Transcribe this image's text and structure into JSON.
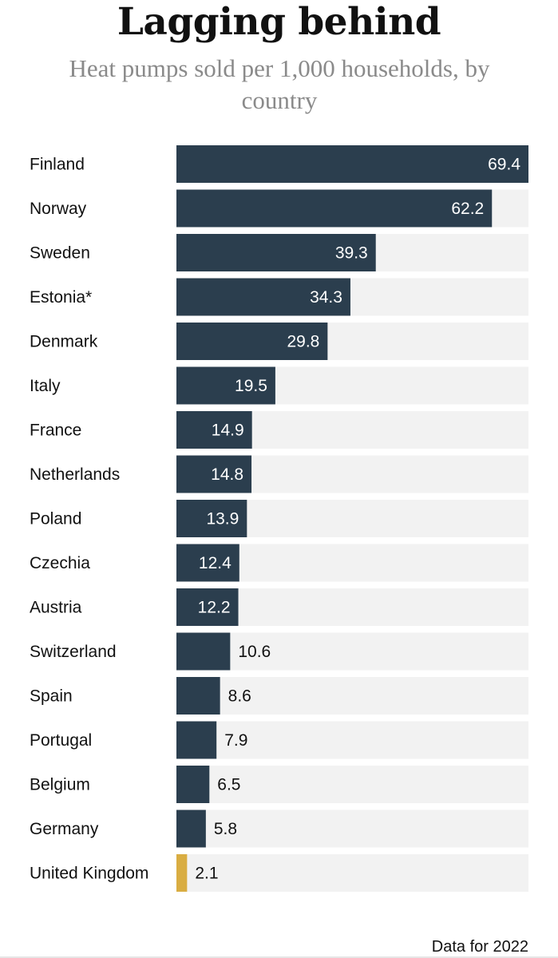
{
  "title": "Lagging behind",
  "subtitle": "Heat pumps sold per 1,000 households, by country",
  "footnote": "Data for 2022",
  "colors": {
    "bar": "#2b3e4e",
    "highlight": "#d9ad42",
    "track": "#f2f2f2",
    "label": "#111111",
    "value_inside": "#ffffff",
    "value_outside": "#111111"
  },
  "chart_data": {
    "type": "bar",
    "orientation": "horizontal",
    "title": "Lagging behind",
    "subtitle": "Heat pumps sold per 1,000 households, by country",
    "categories": [
      "Finland",
      "Norway",
      "Sweden",
      "Estonia*",
      "Denmark",
      "Italy",
      "France",
      "Netherlands",
      "Poland",
      "Czechia",
      "Austria",
      "Switzerland",
      "Spain",
      "Portugal",
      "Belgium",
      "Germany",
      "United Kingdom"
    ],
    "values": [
      69.4,
      62.2,
      39.3,
      34.3,
      29.8,
      19.5,
      14.9,
      14.8,
      13.9,
      12.4,
      12.2,
      10.6,
      8.6,
      7.9,
      6.5,
      5.8,
      2.1
    ],
    "value_labels": [
      "69.4",
      "62.2",
      "39.3",
      "34.3",
      "29.8",
      "19.5",
      "14.9",
      "14.8",
      "13.9",
      "12.4",
      "12.2",
      "10.6",
      "8.6",
      "7.9",
      "6.5",
      "5.8",
      "2.1"
    ],
    "highlight": "United Kingdom",
    "xlim": [
      0,
      69.4
    ],
    "grid": false,
    "legend": "none"
  }
}
